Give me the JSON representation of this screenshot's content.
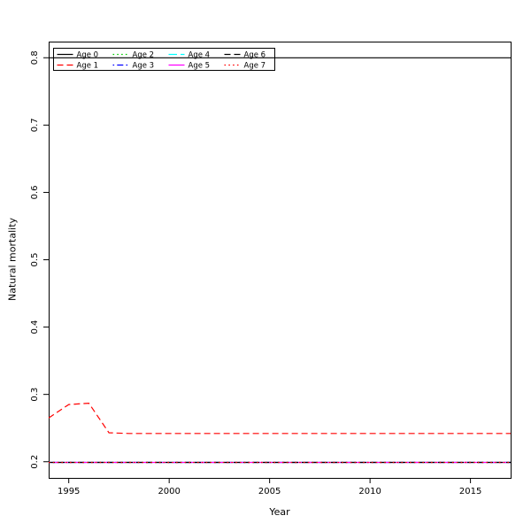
{
  "figure": {
    "background": "#ffffff"
  },
  "chart_data": {
    "type": "line",
    "title": "",
    "xlabel": "Year",
    "ylabel": "Natural mortality",
    "xlim": [
      1994,
      2017
    ],
    "ylim": [
      0.176,
      0.824
    ],
    "x_ticks": [
      1995,
      2000,
      2005,
      2010,
      2015
    ],
    "y_ticks": [
      0.2,
      0.3,
      0.4,
      0.5,
      0.6,
      0.7,
      0.8
    ],
    "grid": false,
    "x": [
      1994,
      1995,
      1996,
      1997,
      1998,
      1999,
      2000,
      2001,
      2002,
      2003,
      2004,
      2005,
      2006,
      2007,
      2008,
      2009,
      2010,
      2011,
      2012,
      2013,
      2014,
      2015,
      2016,
      2017
    ],
    "series": [
      {
        "name": "Age 0",
        "color": "#000000",
        "linetype": "solid",
        "values": [
          0.8,
          0.8,
          0.8,
          0.8,
          0.8,
          0.8,
          0.8,
          0.8,
          0.8,
          0.8,
          0.8,
          0.8,
          0.8,
          0.8,
          0.8,
          0.8,
          0.8,
          0.8,
          0.8,
          0.8,
          0.8,
          0.8,
          0.8,
          0.8
        ]
      },
      {
        "name": "Age 1",
        "color": "#FF0000",
        "linetype": "dashed",
        "values": [
          0.265,
          0.285,
          0.287,
          0.243,
          0.242,
          0.242,
          0.242,
          0.242,
          0.242,
          0.242,
          0.242,
          0.242,
          0.242,
          0.242,
          0.242,
          0.242,
          0.242,
          0.242,
          0.242,
          0.242,
          0.242,
          0.242,
          0.242,
          0.242
        ]
      },
      {
        "name": "Age 2",
        "color": "#00CD00",
        "linetype": "dotted",
        "values": [
          0.199,
          0.199,
          0.199,
          0.199,
          0.199,
          0.199,
          0.199,
          0.199,
          0.199,
          0.199,
          0.199,
          0.199,
          0.199,
          0.199,
          0.199,
          0.199,
          0.199,
          0.199,
          0.199,
          0.199,
          0.199,
          0.199,
          0.199,
          0.199
        ]
      },
      {
        "name": "Age 3",
        "color": "#0000FF",
        "linetype": "dotdash",
        "values": [
          0.199,
          0.199,
          0.199,
          0.199,
          0.199,
          0.199,
          0.199,
          0.199,
          0.199,
          0.199,
          0.199,
          0.199,
          0.199,
          0.199,
          0.199,
          0.199,
          0.199,
          0.199,
          0.199,
          0.199,
          0.199,
          0.199,
          0.199,
          0.199
        ]
      },
      {
        "name": "Age 4",
        "color": "#00FFFF",
        "linetype": "longdash",
        "values": [
          0.199,
          0.199,
          0.199,
          0.199,
          0.199,
          0.199,
          0.199,
          0.199,
          0.199,
          0.199,
          0.199,
          0.199,
          0.199,
          0.199,
          0.199,
          0.199,
          0.199,
          0.199,
          0.199,
          0.199,
          0.199,
          0.199,
          0.199,
          0.199
        ]
      },
      {
        "name": "Age 5",
        "color": "#FF00FF",
        "linetype": "solid",
        "values": [
          0.199,
          0.199,
          0.199,
          0.199,
          0.199,
          0.199,
          0.199,
          0.199,
          0.199,
          0.199,
          0.199,
          0.199,
          0.199,
          0.199,
          0.199,
          0.199,
          0.199,
          0.199,
          0.199,
          0.199,
          0.199,
          0.199,
          0.199,
          0.199
        ]
      },
      {
        "name": "Age 6",
        "color": "#000000",
        "linetype": "dashed",
        "values": [
          0.199,
          0.199,
          0.199,
          0.199,
          0.199,
          0.199,
          0.199,
          0.199,
          0.199,
          0.199,
          0.199,
          0.199,
          0.199,
          0.199,
          0.199,
          0.199,
          0.199,
          0.199,
          0.199,
          0.199,
          0.199,
          0.199,
          0.199,
          0.199
        ]
      },
      {
        "name": "Age 7",
        "color": "#FF0000",
        "linetype": "dotted",
        "values": [
          0.199,
          0.199,
          0.199,
          0.199,
          0.199,
          0.199,
          0.199,
          0.199,
          0.199,
          0.199,
          0.199,
          0.199,
          0.199,
          0.199,
          0.199,
          0.199,
          0.199,
          0.199,
          0.199,
          0.199,
          0.199,
          0.199,
          0.199,
          0.199
        ]
      }
    ],
    "legend": {
      "position": "top-left",
      "columns": 4,
      "border": true,
      "entries": [
        "Age 0",
        "Age 1",
        "Age 2",
        "Age 3",
        "Age 4",
        "Age 5",
        "Age 6",
        "Age 7"
      ]
    }
  }
}
